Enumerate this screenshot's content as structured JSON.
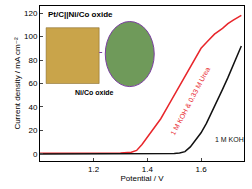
{
  "chart_data": {
    "type": "line",
    "title": "Pt/C||Ni/Co oxide",
    "x_label": "Potential / V",
    "y_label": "Current density / mA cm⁻²",
    "annotations": [
      "Ni/Co oxide"
    ],
    "xlim": [
      1.0,
      1.76
    ],
    "xticks": [
      1.2,
      1.4,
      1.6
    ],
    "ylim": [
      -6,
      126
    ],
    "yticks": [
      0,
      20,
      40,
      60,
      80,
      100,
      120
    ],
    "grid": false,
    "series": [
      {
        "name": "1 M KOH & 0.33 M Urea",
        "color": "#e8262b",
        "x": [
          1.0,
          1.1,
          1.2,
          1.3,
          1.34,
          1.36,
          1.38,
          1.4,
          1.42,
          1.45,
          1.48,
          1.5,
          1.52,
          1.55,
          1.58,
          1.6,
          1.62,
          1.65,
          1.68,
          1.7,
          1.72,
          1.75
        ],
        "values": [
          0.5,
          0.5,
          0.5,
          0.8,
          1.5,
          3,
          8,
          14,
          20,
          30,
          42,
          50,
          58,
          70,
          82,
          90,
          95,
          102,
          107,
          111,
          114,
          118
        ]
      },
      {
        "name": "1 M KOH",
        "color": "#111111",
        "x": [
          1.0,
          1.1,
          1.2,
          1.3,
          1.4,
          1.5,
          1.52,
          1.54,
          1.56,
          1.58,
          1.6,
          1.62,
          1.65,
          1.68,
          1.7,
          1.72,
          1.75
        ],
        "values": [
          0,
          0,
          0,
          0,
          0,
          0.3,
          0.8,
          2,
          6,
          12,
          18,
          26,
          40,
          55,
          65,
          76,
          92
        ]
      }
    ]
  }
}
